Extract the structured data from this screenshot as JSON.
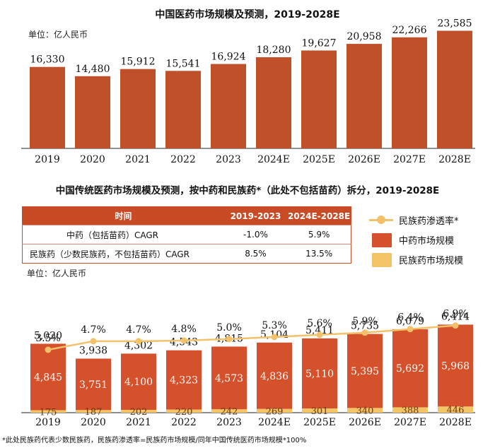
{
  "colors": {
    "bar_main": "#c0502a",
    "bar_tcm": "#d4512b",
    "bar_ethnic": "#f3c566",
    "line": "#f2c16a",
    "header": "#c84b26"
  },
  "chart_data": [
    {
      "type": "bar",
      "title": "中国医药市场规模及预测，2019-2028E",
      "unit": "单位：亿人民币",
      "categories": [
        "2019",
        "2020",
        "2021",
        "2022",
        "2023",
        "2024E",
        "2025E",
        "2026E",
        "2027E",
        "2028E"
      ],
      "values": [
        16330,
        14480,
        15912,
        15541,
        16924,
        18280,
        19627,
        20958,
        22266,
        23585
      ],
      "value_labels": [
        "16,330",
        "14,480",
        "15,912",
        "15,541",
        "16,924",
        "18,280",
        "19,627",
        "20,958",
        "22,266",
        "23,585"
      ],
      "ylim": [
        0,
        25500
      ]
    },
    {
      "type": "bar",
      "title": "中国传统医药市场规模及预测，按中药和民族药*（此处不包括苗药）拆分，2019-2028E",
      "unit": "单位：亿人民币",
      "categories": [
        "2019",
        "2020",
        "2021",
        "2022",
        "2023",
        "2024E",
        "2025E",
        "2026E",
        "2027E",
        "2028E"
      ],
      "totals": [
        "5,020",
        "3,938",
        "4,302",
        "4,543",
        "4,815",
        "5,104",
        "5,411",
        "5,735",
        "6,079",
        "6,414"
      ],
      "series": [
        {
          "name": "中药市场规模",
          "values": [
            4845,
            3751,
            4100,
            4323,
            4573,
            4836,
            5110,
            5395,
            5692,
            5968
          ],
          "labels": [
            "4,845",
            "3,751",
            "4,100",
            "4,323",
            "4,573",
            "4,836",
            "5,110",
            "5,395",
            "5,692",
            "5,968"
          ]
        },
        {
          "name": "民族药市场规模",
          "values": [
            175,
            187,
            202,
            220,
            242,
            269,
            301,
            340,
            388,
            446
          ],
          "labels": [
            "175",
            "187",
            "202",
            "220",
            "242",
            "269",
            "301",
            "340",
            "388",
            "446"
          ]
        },
        {
          "name": "民族药渗透率*",
          "values": [
            3.5,
            4.7,
            4.7,
            4.8,
            5.0,
            5.3,
            5.6,
            5.9,
            6.4,
            6.9
          ],
          "labels": [
            "3.5%",
            "4.7%",
            "4.7%",
            "4.8%",
            "5.0%",
            "5.3%",
            "5.6%",
            "5.9%",
            "6.4%",
            "6.9%"
          ]
        }
      ],
      "ylim": [
        0,
        7000
      ],
      "legend": "top-right"
    }
  ],
  "cagr_table": {
    "headers": [
      "时间",
      "2019-2023",
      "2024E-2028E"
    ],
    "rows": [
      {
        "label": "中药（包括苗药）CAGR",
        "v1": "-1.0%",
        "v2": "5.9%"
      },
      {
        "label": "民族药（少数民族药，不包括苗药）CAGR",
        "v1": "8.5%",
        "v2": "13.5%"
      }
    ]
  },
  "footnote": "*此处民族药代表少数民族药，民族药渗透率=民族药市场规模/同年中国传统医药市场规模*100%"
}
